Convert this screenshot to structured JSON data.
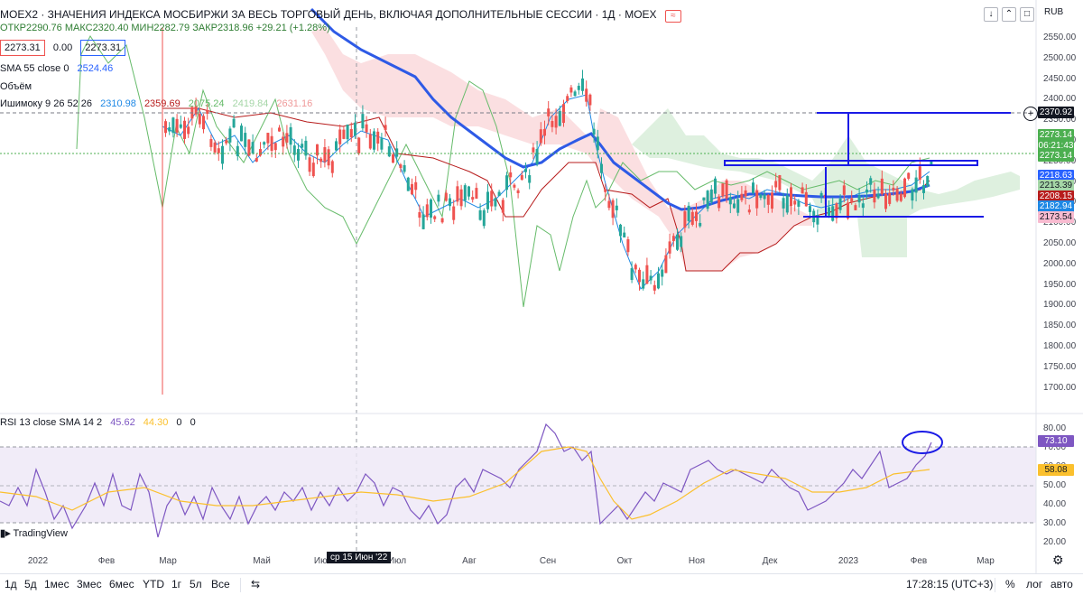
{
  "header": {
    "title": "MOEX2 · ЗНАЧЕНИЯ ИНДЕКСА МОСБИРЖИ ЗА ВЕСЬ ТОРГОВЫЙ ДЕНЬ, ВКЛЮЧАЯ ДОПОЛНИТЕЛЬНЫЕ СЕССИИ · 1Д · MOEX",
    "currency": "RUB",
    "ohlc": "ОТКР2290.76 МАКС2320.40 МИН2282.79 ЗАКР2318.96 +29.21 (+1.28%)",
    "price_left": "2273.31",
    "price_mid": "0.00",
    "price_right": "2273.31"
  },
  "legends": {
    "sma": {
      "label": "SMA 55 close 0",
      "value": "2524.46"
    },
    "volume": {
      "label": "Объём"
    },
    "ichimoku": {
      "label": "Ишимоку 9 26 52 26",
      "v1": "2310.98",
      "v2": "2359.69",
      "v3": "2075.24",
      "v4": "2419.84",
      "v5": "2631.16"
    },
    "rsi": {
      "label": "RSI 13 close SMA 14 2",
      "v1": "45.62",
      "v2": "44.30",
      "v3": "0",
      "v4": "0"
    }
  },
  "price_axis": [
    "2550.00",
    "2500.00",
    "2450.00",
    "2400.00",
    "2350.00",
    "2300.00",
    "2250.00",
    "2200.00",
    "2150.00",
    "2100.00",
    "2050.00",
    "2000.00",
    "1950.00",
    "1900.00",
    "1850.00",
    "1800.00",
    "1750.00",
    "1700.00"
  ],
  "rsi_axis": [
    "80.00",
    "70.00",
    "60.00",
    "50.00",
    "40.00",
    "30.00",
    "20.00"
  ],
  "tags": {
    "t1": "2370.92",
    "t2": "2273.14",
    "t2b": "06:21:43",
    "t3": "2273.14",
    "t4": "2218.63",
    "t5": "2213.39",
    "t6": "2208.15",
    "t7": "2182.94",
    "t8": "2173.54",
    "rsi1": "73.10",
    "rsi2": "58.08"
  },
  "colors": {
    "tag_dark": "#131722",
    "tag_green": "#4caf50",
    "tag_blue": "#2962ff",
    "tag_lgreen": "#a5d6a7",
    "tag_red": "#ef5350",
    "tag_pink": "#f8bbd0",
    "rsi_purple": "#7e57c2",
    "rsi_yellow": "#fbc02d"
  },
  "time_axis": [
    "2022",
    "Фев",
    "Мар",
    "Май",
    "Июн",
    "Июл",
    "Авг",
    "Сен",
    "Окт",
    "Ноя",
    "Дек",
    "2023",
    "Фев",
    "Мар"
  ],
  "crosshair_date": "ср 15 Июн '22",
  "watermark": "TradingView",
  "toolbar": {
    "ranges": [
      "1д",
      "5д",
      "1мес",
      "3мес",
      "6мес",
      "YTD",
      "1г",
      "5л",
      "Все"
    ],
    "clock": "17:28:15 (UTC+3)",
    "pct": "%",
    "log": "лог",
    "auto": "авто"
  }
}
